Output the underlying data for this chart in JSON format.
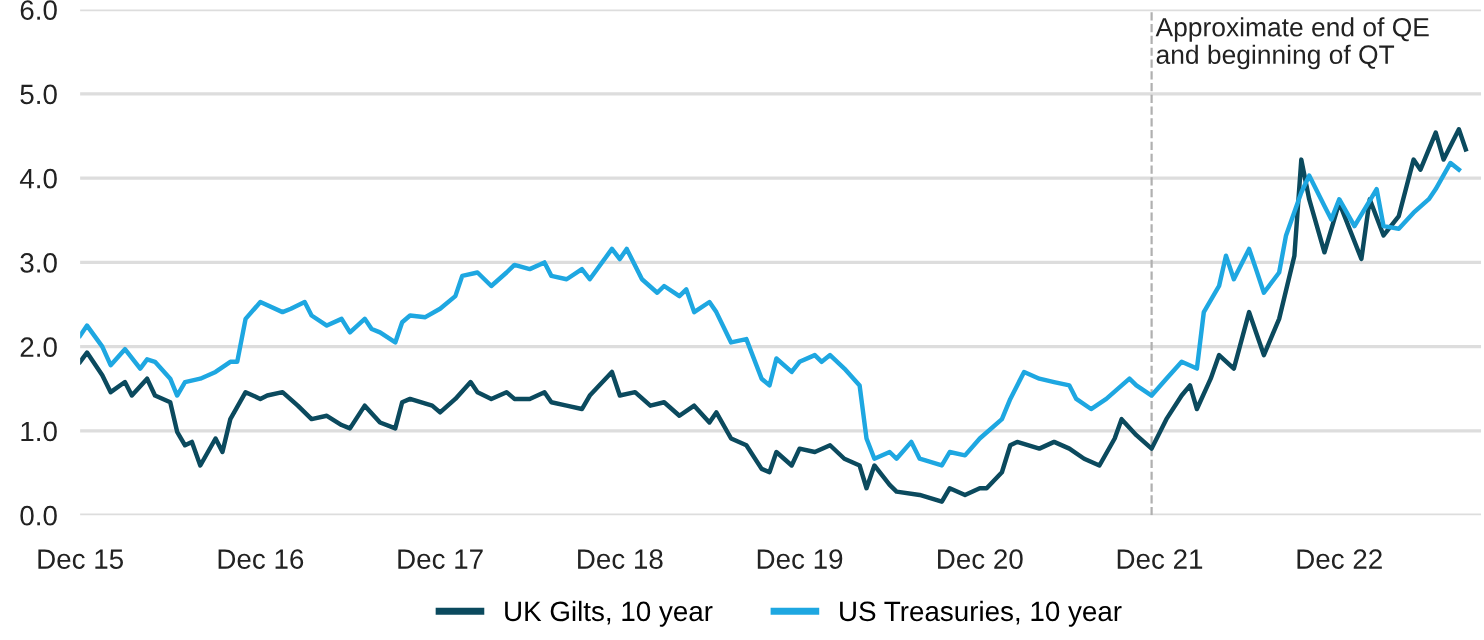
{
  "chart_data": {
    "type": "line",
    "xlim": [
      "2015-12-01",
      "2023-09-15"
    ],
    "xticks": [
      {
        "value": "2015-12-01",
        "label": "Dec 15"
      },
      {
        "value": "2016-12-01",
        "label": "Dec 16"
      },
      {
        "value": "2017-12-01",
        "label": "Dec 17"
      },
      {
        "value": "2018-12-01",
        "label": "Dec 18"
      },
      {
        "value": "2019-12-01",
        "label": "Dec 19"
      },
      {
        "value": "2020-12-01",
        "label": "Dec 20"
      },
      {
        "value": "2021-12-01",
        "label": "Dec 21"
      },
      {
        "value": "2022-12-01",
        "label": "Dec 22"
      }
    ],
    "ylim": [
      0,
      6
    ],
    "yticks": [
      {
        "value": 0,
        "label": "0.0"
      },
      {
        "value": 1,
        "label": "1.0"
      },
      {
        "value": 2,
        "label": "2.0"
      },
      {
        "value": 3,
        "label": "3.0"
      },
      {
        "value": 4,
        "label": "4.0"
      },
      {
        "value": 5,
        "label": "5.0"
      },
      {
        "value": 6,
        "label": "6.0"
      }
    ],
    "grid": "y",
    "legend": "bottom",
    "ref_lines": [
      {
        "axis": "x",
        "value": "2021-11-15",
        "label": "Approximate end of QE\nand beginning of QT",
        "color": "#b0b0b0",
        "line_style": "dashed"
      }
    ],
    "series": [
      {
        "name": "UK Gilts, 10 year",
        "color": "#0b4a5e",
        "x": [
          "2015-12-01",
          "2015-12-15",
          "2016-01-15",
          "2016-02-01",
          "2016-03-01",
          "2016-03-15",
          "2016-04-15",
          "2016-05-01",
          "2016-06-01",
          "2016-06-15",
          "2016-07-01",
          "2016-07-15",
          "2016-08-01",
          "2016-09-01",
          "2016-09-15",
          "2016-10-01",
          "2016-11-01",
          "2016-12-01",
          "2016-12-15",
          "2017-01-15",
          "2017-02-15",
          "2017-03-15",
          "2017-04-15",
          "2017-05-15",
          "2017-06-01",
          "2017-07-01",
          "2017-08-01",
          "2017-09-01",
          "2017-09-15",
          "2017-10-01",
          "2017-11-15",
          "2017-12-01",
          "2018-01-01",
          "2018-02-01",
          "2018-02-15",
          "2018-03-15",
          "2018-04-15",
          "2018-05-01",
          "2018-06-01",
          "2018-07-01",
          "2018-07-15",
          "2018-08-15",
          "2018-09-15",
          "2018-10-01",
          "2018-11-15",
          "2018-12-01",
          "2019-01-01",
          "2019-02-01",
          "2019-03-01",
          "2019-04-01",
          "2019-05-01",
          "2019-06-01",
          "2019-06-15",
          "2019-07-15",
          "2019-08-15",
          "2019-09-15",
          "2019-10-01",
          "2019-10-15",
          "2019-11-15",
          "2019-12-01",
          "2020-01-01",
          "2020-02-01",
          "2020-03-01",
          "2020-04-01",
          "2020-04-15",
          "2020-05-01",
          "2020-06-01",
          "2020-06-15",
          "2020-08-01",
          "2020-09-15",
          "2020-10-01",
          "2020-11-01",
          "2020-12-01",
          "2020-12-15",
          "2021-01-15",
          "2021-02-01",
          "2021-02-15",
          "2021-04-01",
          "2021-05-01",
          "2021-06-01",
          "2021-07-01",
          "2021-08-01",
          "2021-09-01",
          "2021-09-15",
          "2021-10-15",
          "2021-11-15",
          "2021-12-15",
          "2022-01-15",
          "2022-02-01",
          "2022-02-15",
          "2022-03-15",
          "2022-04-01",
          "2022-05-01",
          "2022-06-01",
          "2022-06-15",
          "2022-07-01",
          "2022-08-01",
          "2022-09-01",
          "2022-09-15",
          "2022-10-01",
          "2022-11-01",
          "2022-12-01",
          "2023-01-15",
          "2023-02-01",
          "2023-03-01",
          "2023-04-01",
          "2023-05-01",
          "2023-05-15",
          "2023-06-15",
          "2023-07-01",
          "2023-08-01",
          "2023-08-15"
        ],
        "values": [
          1.82,
          1.93,
          1.66,
          1.46,
          1.58,
          1.42,
          1.62,
          1.42,
          1.34,
          0.99,
          0.83,
          0.87,
          0.59,
          0.91,
          0.75,
          1.14,
          1.46,
          1.38,
          1.42,
          1.46,
          1.3,
          1.14,
          1.18,
          1.07,
          1.03,
          1.3,
          1.1,
          1.03,
          1.34,
          1.38,
          1.3,
          1.22,
          1.38,
          1.58,
          1.46,
          1.38,
          1.46,
          1.38,
          1.38,
          1.46,
          1.34,
          1.3,
          1.26,
          1.42,
          1.7,
          1.42,
          1.46,
          1.3,
          1.34,
          1.18,
          1.3,
          1.1,
          1.22,
          0.91,
          0.83,
          0.55,
          0.51,
          0.75,
          0.59,
          0.79,
          0.75,
          0.83,
          0.67,
          0.59,
          0.32,
          0.59,
          0.36,
          0.28,
          0.24,
          0.16,
          0.32,
          0.24,
          0.32,
          0.32,
          0.51,
          0.83,
          0.87,
          0.79,
          0.87,
          0.79,
          0.67,
          0.59,
          0.91,
          1.14,
          0.95,
          0.79,
          1.14,
          1.42,
          1.54,
          1.26,
          1.62,
          1.9,
          1.74,
          2.41,
          2.17,
          1.9,
          2.33,
          3.08,
          4.22,
          3.75,
          3.12,
          3.71,
          3.04,
          3.75,
          3.32,
          3.55,
          4.22,
          4.1,
          4.54,
          4.22,
          4.58,
          4.34
        ]
      },
      {
        "name": "US Treasuries, 10 year",
        "color": "#1ea7e1",
        "x": [
          "2015-12-01",
          "2015-12-15",
          "2016-01-15",
          "2016-02-01",
          "2016-03-01",
          "2016-04-01",
          "2016-04-15",
          "2016-05-01",
          "2016-06-01",
          "2016-06-15",
          "2016-07-01",
          "2016-08-01",
          "2016-09-01",
          "2016-10-01",
          "2016-10-15",
          "2016-11-01",
          "2016-12-01",
          "2017-01-15",
          "2017-02-01",
          "2017-03-01",
          "2017-03-15",
          "2017-04-15",
          "2017-05-15",
          "2017-06-01",
          "2017-07-01",
          "2017-07-15",
          "2017-08-01",
          "2017-09-01",
          "2017-09-15",
          "2017-10-01",
          "2017-11-01",
          "2017-12-01",
          "2018-01-01",
          "2018-01-15",
          "2018-02-15",
          "2018-03-15",
          "2018-04-15",
          "2018-05-01",
          "2018-06-01",
          "2018-07-01",
          "2018-07-15",
          "2018-08-15",
          "2018-09-15",
          "2018-10-01",
          "2018-11-15",
          "2018-12-01",
          "2018-12-15",
          "2019-01-15",
          "2019-02-15",
          "2019-03-01",
          "2019-04-01",
          "2019-04-15",
          "2019-05-01",
          "2019-06-01",
          "2019-06-15",
          "2019-07-15",
          "2019-08-15",
          "2019-09-15",
          "2019-10-01",
          "2019-10-15",
          "2019-11-15",
          "2019-12-01",
          "2020-01-01",
          "2020-01-15",
          "2020-02-01",
          "2020-03-01",
          "2020-04-01",
          "2020-04-15",
          "2020-05-01",
          "2020-06-01",
          "2020-06-15",
          "2020-07-15",
          "2020-08-01",
          "2020-09-15",
          "2020-10-01",
          "2020-11-01",
          "2020-12-01",
          "2021-01-15",
          "2021-02-01",
          "2021-03-01",
          "2021-04-01",
          "2021-05-01",
          "2021-06-01",
          "2021-06-15",
          "2021-07-15",
          "2021-08-15",
          "2021-10-01",
          "2021-10-15",
          "2021-11-15",
          "2021-12-15",
          "2022-01-15",
          "2022-02-15",
          "2022-03-01",
          "2022-04-01",
          "2022-04-15",
          "2022-05-01",
          "2022-06-01",
          "2022-06-15",
          "2022-07-01",
          "2022-08-01",
          "2022-08-15",
          "2022-09-15",
          "2022-10-01",
          "2022-11-01",
          "2022-11-15",
          "2022-12-01",
          "2023-01-01",
          "2023-02-15",
          "2023-03-01",
          "2023-04-01",
          "2023-05-01",
          "2023-06-01",
          "2023-06-15",
          "2023-07-15",
          "2023-08-01"
        ],
        "values": [
          2.13,
          2.25,
          2.0,
          1.78,
          1.97,
          1.74,
          1.85,
          1.82,
          1.62,
          1.42,
          1.58,
          1.62,
          1.7,
          1.82,
          1.82,
          2.33,
          2.53,
          2.41,
          2.45,
          2.53,
          2.37,
          2.25,
          2.33,
          2.17,
          2.33,
          2.21,
          2.17,
          2.05,
          2.29,
          2.37,
          2.35,
          2.45,
          2.6,
          2.84,
          2.88,
          2.72,
          2.88,
          2.97,
          2.92,
          3.0,
          2.84,
          2.8,
          2.92,
          2.8,
          3.16,
          3.04,
          3.16,
          2.8,
          2.64,
          2.72,
          2.6,
          2.68,
          2.41,
          2.53,
          2.41,
          2.05,
          2.09,
          1.62,
          1.54,
          1.86,
          1.7,
          1.82,
          1.9,
          1.82,
          1.9,
          1.74,
          1.54,
          0.91,
          0.67,
          0.75,
          0.67,
          0.87,
          0.67,
          0.59,
          0.75,
          0.71,
          0.91,
          1.14,
          1.38,
          1.7,
          1.62,
          1.58,
          1.54,
          1.38,
          1.26,
          1.38,
          1.62,
          1.54,
          1.42,
          1.62,
          1.82,
          1.74,
          2.41,
          2.72,
          3.08,
          2.8,
          3.16,
          2.92,
          2.64,
          2.88,
          3.32,
          3.83,
          4.03,
          3.67,
          3.51,
          3.75,
          3.43,
          3.87,
          3.43,
          3.4,
          3.59,
          3.75,
          3.87,
          4.18,
          4.1
        ]
      }
    ]
  }
}
